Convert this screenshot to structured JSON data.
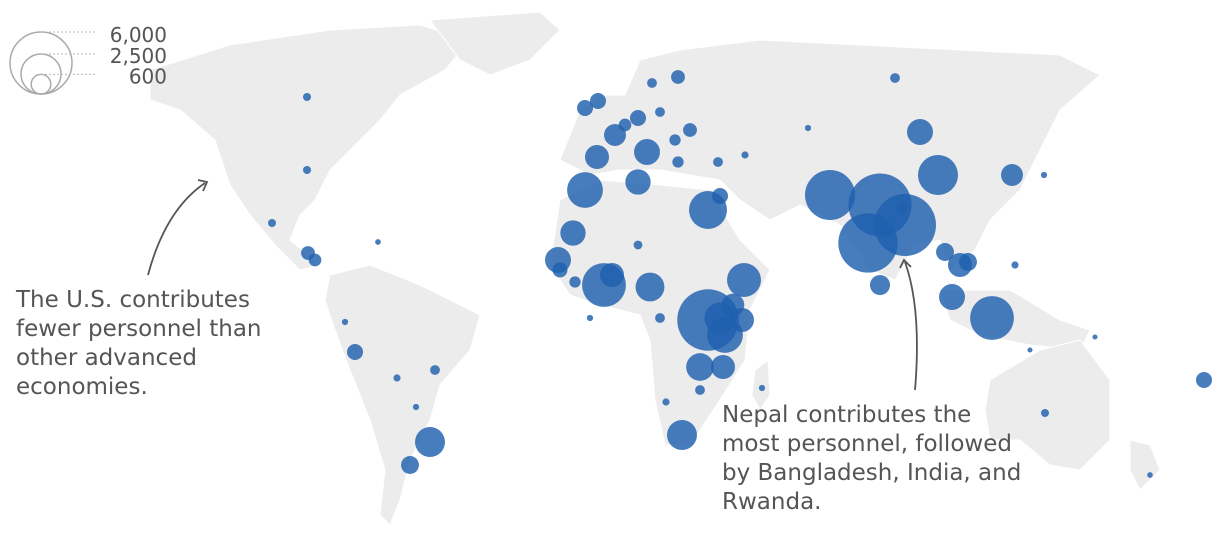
{
  "legend": {
    "sizes": [
      {
        "value": 6000,
        "label": "6,000"
      },
      {
        "value": 2500,
        "label": "2,500"
      },
      {
        "value": 600,
        "label": "600"
      }
    ]
  },
  "bubble_values": [
    6200,
    6000,
    5500,
    5900,
    3900,
    2000,
    1500,
    2500,
    3000,
    3000,
    1300,
    1050,
    2000,
    2250,
    1800,
    1200,
    900,
    1400,
    1400,
    500,
    400,
    900,
    1050,
    1050,
    750,
    750,
    1050,
    900,
    1000,
    1000,
    400,
    400,
    625,
    400,
    300,
    250,
    100,
    100,
    100,
    150,
    400,
    250,
    150,
    150,
    300,
    300,
    900,
    400,
    350,
    150,
    80,
    60,
    150,
    500,
    500,
    80,
    60,
    100,
    50,
    60,
    150,
    80,
    200,
    200,
    150,
    800,
    900,
    80,
    60,
    150,
    60,
    50,
    40,
    40,
    200,
    120,
    60
  ],
  "annotations": [
    {
      "lines": [
        "The U.S. contributes",
        "fewer personnel than",
        "other advanced",
        "economies."
      ]
    },
    {
      "lines": [
        "Nepal contributes the",
        "most personnel, followed",
        "by Bangladesh, India, and",
        "Rwanda."
      ]
    }
  ]
}
